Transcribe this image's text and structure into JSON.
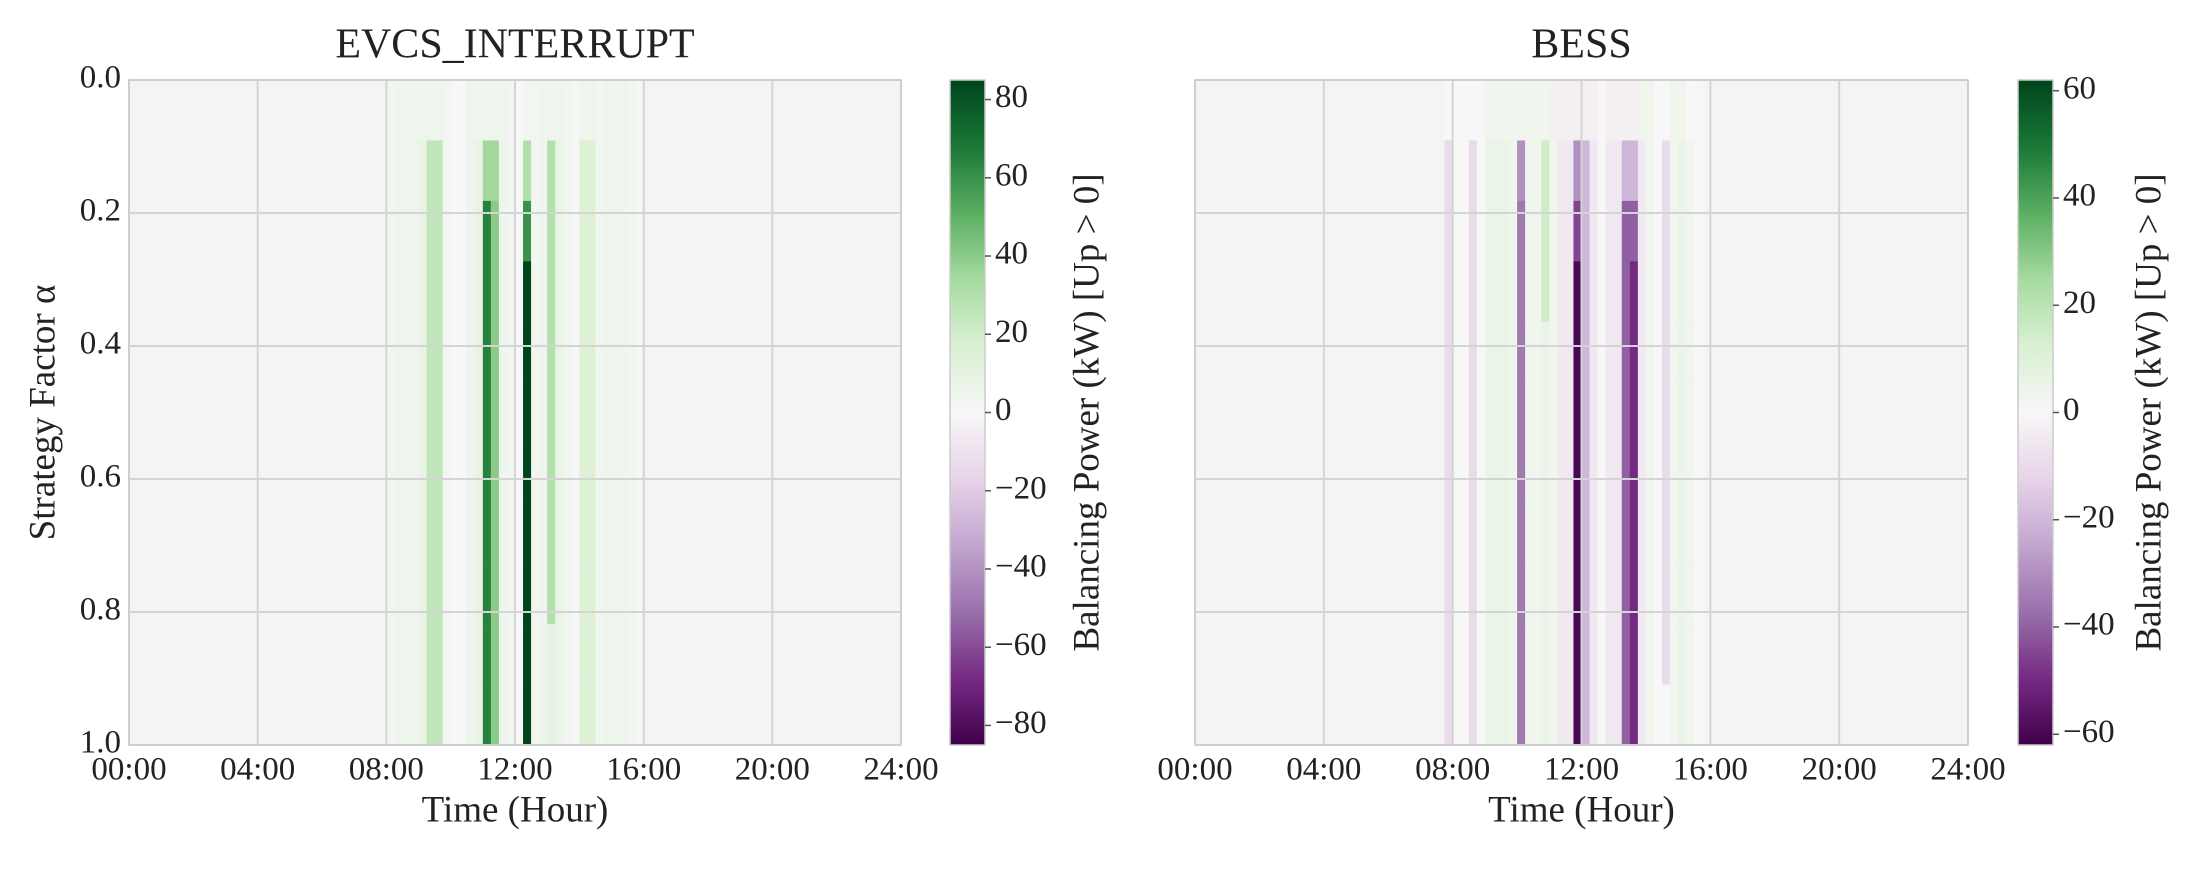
{
  "chart_data": [
    {
      "type": "heatmap",
      "title": "EVCS_INTERRUPT",
      "xlabel": "Time (Hour)",
      "ylabel": "Strategy Factor α",
      "colorbar_label": "Balancing Power (kW) [Up > 0]",
      "x": [
        8,
        8.25,
        8.5,
        8.75,
        9,
        9.25,
        9.5,
        9.75,
        10,
        10.25,
        10.5,
        10.75,
        11,
        11.25,
        11.5,
        11.75,
        12,
        12.25,
        12.5,
        12.75,
        13,
        13.25,
        13.5,
        13.75,
        14,
        14.25,
        14.5,
        14.75,
        15,
        15.25,
        15.5,
        15.75,
        16
      ],
      "y": [
        0,
        0.1,
        0.2,
        0.3,
        0.4,
        0.5,
        0.6,
        0.7,
        0.8,
        0.9,
        1
      ],
      "values": [
        [
          3,
          5,
          5,
          5,
          5,
          5,
          5,
          3,
          0,
          0,
          5,
          5,
          5,
          5,
          5,
          3,
          0,
          3,
          3,
          5,
          5,
          5,
          3,
          0,
          5,
          5,
          3,
          5,
          5,
          5,
          3,
          0
        ],
        [
          3,
          5,
          5,
          5,
          8,
          25,
          25,
          3,
          0,
          0,
          5,
          8,
          35,
          35,
          5,
          3,
          0,
          30,
          3,
          5,
          30,
          8,
          3,
          0,
          15,
          15,
          3,
          5,
          5,
          5,
          3,
          0
        ],
        [
          3,
          5,
          5,
          5,
          8,
          25,
          25,
          3,
          0,
          0,
          5,
          8,
          65,
          40,
          5,
          3,
          0,
          60,
          3,
          5,
          30,
          8,
          3,
          0,
          15,
          15,
          3,
          5,
          5,
          5,
          3,
          0
        ],
        [
          3,
          5,
          5,
          5,
          8,
          25,
          25,
          3,
          0,
          0,
          5,
          8,
          65,
          40,
          5,
          3,
          0,
          85,
          3,
          5,
          30,
          8,
          3,
          0,
          15,
          15,
          3,
          5,
          5,
          5,
          3,
          0
        ],
        [
          3,
          5,
          5,
          5,
          8,
          25,
          25,
          3,
          0,
          0,
          5,
          8,
          65,
          40,
          5,
          3,
          0,
          85,
          3,
          5,
          30,
          8,
          3,
          0,
          15,
          15,
          3,
          5,
          5,
          5,
          3,
          0
        ],
        [
          3,
          5,
          5,
          5,
          8,
          25,
          25,
          3,
          0,
          0,
          5,
          8,
          65,
          40,
          5,
          3,
          0,
          85,
          3,
          5,
          30,
          8,
          3,
          0,
          15,
          15,
          3,
          5,
          5,
          5,
          3,
          0
        ],
        [
          3,
          5,
          5,
          5,
          8,
          25,
          25,
          3,
          0,
          0,
          5,
          8,
          65,
          40,
          5,
          3,
          0,
          85,
          3,
          5,
          30,
          8,
          3,
          0,
          15,
          15,
          3,
          5,
          5,
          5,
          3,
          0
        ],
        [
          3,
          5,
          5,
          5,
          8,
          25,
          25,
          3,
          0,
          0,
          5,
          8,
          65,
          40,
          5,
          3,
          0,
          85,
          3,
          5,
          30,
          8,
          3,
          0,
          15,
          15,
          3,
          5,
          5,
          5,
          3,
          0
        ],
        [
          3,
          5,
          5,
          5,
          8,
          25,
          25,
          3,
          0,
          0,
          5,
          8,
          65,
          40,
          5,
          3,
          0,
          85,
          3,
          5,
          30,
          8,
          3,
          0,
          15,
          15,
          3,
          5,
          5,
          5,
          3,
          0
        ],
        [
          3,
          5,
          5,
          5,
          8,
          25,
          25,
          3,
          0,
          0,
          5,
          8,
          65,
          40,
          5,
          3,
          0,
          85,
          3,
          5,
          10,
          8,
          3,
          0,
          15,
          15,
          3,
          5,
          5,
          5,
          3,
          0
        ],
        [
          3,
          5,
          5,
          5,
          8,
          25,
          25,
          3,
          0,
          0,
          5,
          8,
          65,
          40,
          5,
          3,
          0,
          85,
          3,
          5,
          10,
          8,
          3,
          0,
          15,
          15,
          3,
          5,
          5,
          5,
          3,
          0
        ]
      ],
      "xlim": [
        0,
        24
      ],
      "xticks": [
        {
          "value": 0,
          "label": "00:00"
        },
        {
          "value": 4,
          "label": "04:00"
        },
        {
          "value": 8,
          "label": "08:00"
        },
        {
          "value": 12,
          "label": "12:00"
        },
        {
          "value": 16,
          "label": "16:00"
        },
        {
          "value": 20,
          "label": "20:00"
        },
        {
          "value": 24,
          "label": "24:00"
        }
      ],
      "ylim": [
        1,
        0
      ],
      "yticks": [
        {
          "value": 0,
          "label": "0.0"
        },
        {
          "value": 0.2,
          "label": "0.2"
        },
        {
          "value": 0.4,
          "label": "0.4"
        },
        {
          "value": 0.6,
          "label": "0.6"
        },
        {
          "value": 0.8,
          "label": "0.8"
        },
        {
          "value": 1,
          "label": "1.0"
        }
      ],
      "show_yticklabels": true,
      "zlim": [
        -85,
        85
      ],
      "zticks": [
        {
          "value": -80,
          "label": "−80"
        },
        {
          "value": -60,
          "label": "−60"
        },
        {
          "value": -40,
          "label": "−40"
        },
        {
          "value": -20,
          "label": "−20"
        },
        0,
        20,
        40,
        60,
        80
      ],
      "colormap": [
        "#40004b",
        "#762a83",
        "#9970ab",
        "#c2a5cf",
        "#e7d4e8",
        "#f7f7f7",
        "#d9f0d3",
        "#a6dba0",
        "#5aae61",
        "#1b7837",
        "#00441b"
      ],
      "grid": true
    },
    {
      "type": "heatmap",
      "title": "BESS",
      "xlabel": "Time (Hour)",
      "colorbar_label": "Balancing Power (kW) [Up > 0]",
      "x": [
        7.75,
        8,
        8.25,
        8.5,
        8.75,
        9,
        9.25,
        9.5,
        9.75,
        10,
        10.25,
        10.5,
        10.75,
        11,
        11.25,
        11.5,
        11.75,
        12,
        12.25,
        12.5,
        12.75,
        13,
        13.25,
        13.5,
        13.75,
        14,
        14.25,
        14.5,
        14.75,
        15,
        15.25,
        15.5,
        15.75
      ],
      "y": [
        0,
        0.1,
        0.2,
        0.3,
        0.4,
        0.5,
        0.6,
        0.7,
        0.8,
        0.9,
        1
      ],
      "values": [
        [
          0,
          0,
          0,
          0,
          0,
          3,
          3,
          3,
          3,
          3,
          3,
          3,
          3,
          -3,
          -3,
          -3,
          -3,
          -3,
          -3,
          0,
          -3,
          -3,
          -3,
          -3,
          3,
          3,
          0,
          0,
          3,
          3,
          0,
          0
        ],
        [
          -10,
          0,
          0,
          -10,
          0,
          5,
          5,
          5,
          3,
          -30,
          3,
          3,
          15,
          3,
          -5,
          -5,
          -30,
          -20,
          -5,
          0,
          -5,
          -5,
          -20,
          -20,
          -5,
          3,
          0,
          -10,
          3,
          5,
          3,
          0
        ],
        [
          -10,
          0,
          0,
          -10,
          0,
          5,
          5,
          5,
          3,
          -35,
          3,
          3,
          15,
          3,
          -5,
          -5,
          -45,
          -20,
          -5,
          0,
          -5,
          -5,
          -40,
          -40,
          -5,
          3,
          0,
          -10,
          3,
          5,
          3,
          0
        ],
        [
          -10,
          0,
          0,
          -10,
          0,
          5,
          5,
          5,
          3,
          -35,
          3,
          3,
          15,
          3,
          -5,
          -5,
          -60,
          -20,
          -5,
          0,
          -5,
          -5,
          -40,
          -50,
          -5,
          3,
          0,
          -10,
          3,
          5,
          3,
          0
        ],
        [
          -10,
          0,
          0,
          -10,
          0,
          5,
          5,
          5,
          3,
          -35,
          3,
          3,
          5,
          3,
          -5,
          -5,
          -60,
          -20,
          -5,
          0,
          -5,
          -5,
          -40,
          -50,
          -5,
          3,
          0,
          -10,
          3,
          5,
          3,
          0
        ],
        [
          -10,
          0,
          0,
          -10,
          0,
          5,
          5,
          5,
          3,
          -35,
          3,
          3,
          5,
          3,
          -5,
          -5,
          -60,
          -20,
          -5,
          0,
          -5,
          -5,
          -40,
          -50,
          -5,
          3,
          0,
          -10,
          3,
          5,
          3,
          0
        ],
        [
          -10,
          0,
          0,
          -10,
          0,
          5,
          5,
          5,
          3,
          -35,
          3,
          3,
          5,
          3,
          -5,
          -5,
          -60,
          -20,
          -5,
          0,
          -5,
          -5,
          -40,
          -50,
          -5,
          3,
          0,
          -10,
          3,
          5,
          3,
          0
        ],
        [
          -10,
          0,
          0,
          -10,
          0,
          5,
          5,
          5,
          3,
          -35,
          3,
          3,
          5,
          3,
          -5,
          -5,
          -60,
          -20,
          -5,
          0,
          -5,
          -5,
          -40,
          -50,
          -5,
          3,
          0,
          -10,
          3,
          5,
          3,
          0
        ],
        [
          -10,
          0,
          0,
          -10,
          0,
          5,
          5,
          5,
          3,
          -35,
          3,
          3,
          5,
          3,
          -5,
          -5,
          -60,
          -20,
          -5,
          0,
          -5,
          -5,
          -40,
          -50,
          -5,
          3,
          0,
          -10,
          3,
          5,
          3,
          0
        ],
        [
          -10,
          0,
          0,
          -10,
          0,
          5,
          5,
          5,
          3,
          -35,
          3,
          3,
          5,
          3,
          -5,
          -5,
          -60,
          -20,
          -5,
          0,
          -5,
          -5,
          -40,
          -50,
          -5,
          3,
          0,
          -10,
          3,
          5,
          3,
          0
        ],
        [
          -10,
          0,
          0,
          -10,
          0,
          5,
          5,
          5,
          3,
          -35,
          3,
          3,
          5,
          3,
          -5,
          -5,
          -60,
          -20,
          -5,
          0,
          -5,
          -5,
          -40,
          -50,
          -5,
          3,
          0,
          0,
          3,
          5,
          3,
          0
        ]
      ],
      "xlim": [
        0,
        24
      ],
      "xticks": [
        {
          "value": 0,
          "label": "00:00"
        },
        {
          "value": 4,
          "label": "04:00"
        },
        {
          "value": 8,
          "label": "08:00"
        },
        {
          "value": 12,
          "label": "12:00"
        },
        {
          "value": 16,
          "label": "16:00"
        },
        {
          "value": 20,
          "label": "20:00"
        },
        {
          "value": 24,
          "label": "24:00"
        }
      ],
      "ylim": [
        1,
        0
      ],
      "yticks": [
        {
          "value": 0,
          "label": "0.0"
        },
        {
          "value": 0.2,
          "label": "0.2"
        },
        {
          "value": 0.4,
          "label": "0.4"
        },
        {
          "value": 0.6,
          "label": "0.6"
        },
        {
          "value": 0.8,
          "label": "0.8"
        },
        {
          "value": 1,
          "label": "1.0"
        }
      ],
      "show_yticklabels": false,
      "zlim": [
        -62,
        62
      ],
      "zticks": [
        {
          "value": -60,
          "label": "−60"
        },
        {
          "value": -40,
          "label": "−40"
        },
        {
          "value": -20,
          "label": "−20"
        },
        0,
        20,
        40,
        60
      ],
      "colormap": [
        "#40004b",
        "#762a83",
        "#9970ab",
        "#c2a5cf",
        "#e7d4e8",
        "#f7f7f7",
        "#d9f0d3",
        "#a6dba0",
        "#5aae61",
        "#1b7837",
        "#00441b"
      ],
      "grid": true
    }
  ]
}
